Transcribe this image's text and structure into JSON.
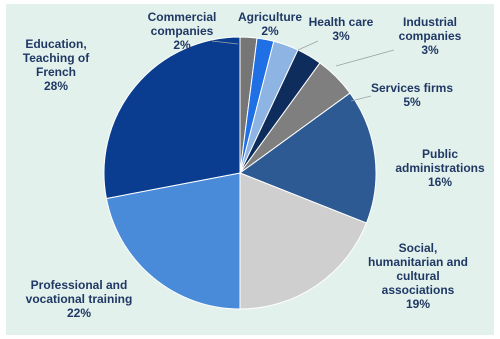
{
  "chart_data": {
    "type": "pie",
    "title": "",
    "start_angle_deg": 90,
    "direction": "clockwise",
    "slices": [
      {
        "label": [
          "Commercial",
          "companies",
          "2%"
        ],
        "value": 2,
        "color": "#767676"
      },
      {
        "label": [
          "Agriculture",
          "2%"
        ],
        "value": 2,
        "color": "#1f6fe5"
      },
      {
        "label": [
          "Health care",
          "3%"
        ],
        "value": 3,
        "color": "#8eb4e3"
      },
      {
        "label": [
          "Industrial",
          "companies",
          "3%"
        ],
        "value": 3,
        "color": "#0e2d5c"
      },
      {
        "label": [
          "Services firms",
          "5%"
        ],
        "value": 5,
        "color": "#7f7f7f"
      },
      {
        "label": [
          "Public",
          "administrations",
          "16%"
        ],
        "value": 16,
        "color": "#2e5a93"
      },
      {
        "label": [
          "Social,",
          "humanitarian and",
          "cultural",
          "associations",
          "19%"
        ],
        "value": 19,
        "color": "#cfcfcf"
      },
      {
        "label": [
          "Professional and",
          "vocational training",
          "22%"
        ],
        "value": 22,
        "color": "#4a8bd9"
      },
      {
        "label": [
          "Education,",
          "Teaching of",
          "French",
          "28%"
        ],
        "value": 28,
        "color": "#0a3d8f"
      }
    ]
  }
}
